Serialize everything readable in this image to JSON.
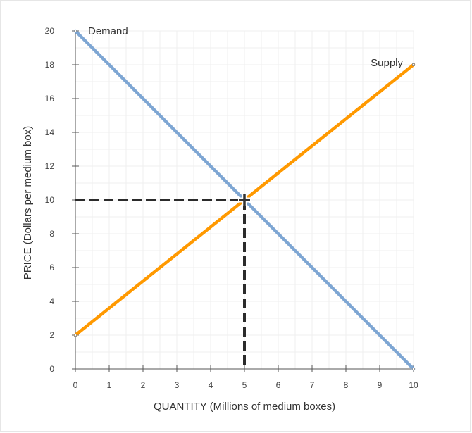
{
  "chart_data": {
    "type": "line",
    "title": "",
    "xlabel": "QUANTITY (Millions of medium boxes)",
    "ylabel": "PRICE (Dollars per medium box)",
    "xlim": [
      0,
      10
    ],
    "ylim": [
      0,
      20
    ],
    "x_ticks": [
      0,
      1,
      2,
      3,
      4,
      5,
      6,
      7,
      8,
      9,
      10
    ],
    "y_ticks": [
      0,
      2,
      4,
      6,
      8,
      10,
      12,
      14,
      16,
      18,
      20
    ],
    "grid": true,
    "series": [
      {
        "name": "Demand",
        "color": "#7ea6d3",
        "points": [
          [
            0,
            20
          ],
          [
            10,
            0
          ]
        ]
      },
      {
        "name": "Supply",
        "color": "#ff9900",
        "points": [
          [
            0,
            2
          ],
          [
            10,
            18
          ]
        ]
      }
    ],
    "equilibrium": {
      "x": 5,
      "y": 10,
      "marker": "plus-icon",
      "guide_color": "#2b2b2b",
      "guide_style": "dashed"
    }
  }
}
